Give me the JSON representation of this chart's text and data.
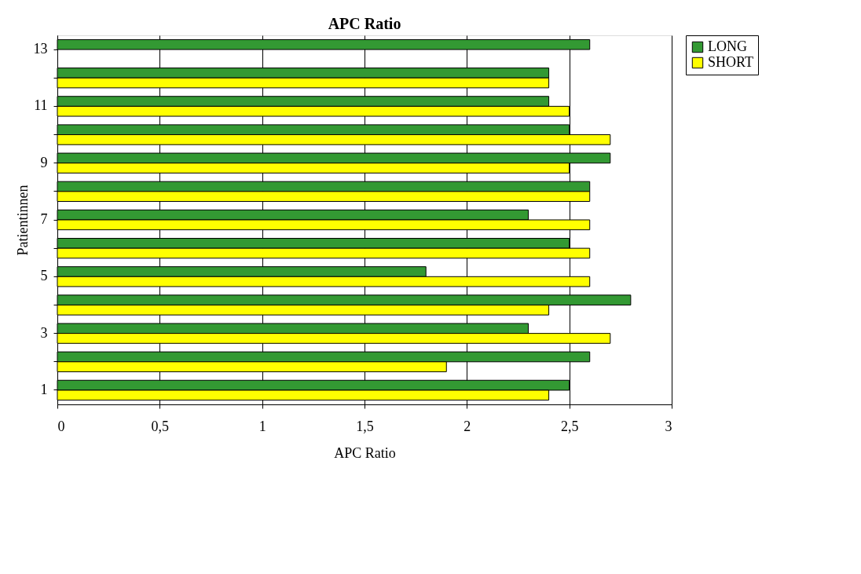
{
  "chart_data": {
    "type": "bar",
    "orientation": "horizontal",
    "title": "APC Ratio",
    "xlabel": "APC Ratio",
    "ylabel": "Patientinnen",
    "categories": [
      "13",
      null,
      "11",
      null,
      "9",
      null,
      "7",
      null,
      "5",
      null,
      "3",
      null,
      "1"
    ],
    "series": [
      {
        "name": "LONG",
        "color": "#339933",
        "values": [
          2.6,
          2.4,
          2.4,
          2.5,
          2.7,
          2.6,
          2.3,
          2.5,
          1.8,
          2.8,
          2.3,
          2.6,
          2.5
        ]
      },
      {
        "name": "SHORT",
        "color": "#ffff00",
        "values": [
          null,
          2.4,
          2.5,
          2.7,
          2.5,
          2.6,
          2.6,
          2.6,
          2.6,
          2.4,
          2.7,
          1.9,
          2.4
        ]
      }
    ],
    "xlim": [
      0,
      3
    ],
    "xticks": [
      0,
      {
        "value": 0.5,
        "label": "0,5"
      },
      1,
      {
        "value": 1.5,
        "label": "1,5"
      },
      2,
      {
        "value": 2.5,
        "label": "2,5"
      },
      3
    ],
    "grid": "x",
    "legend": "right"
  }
}
